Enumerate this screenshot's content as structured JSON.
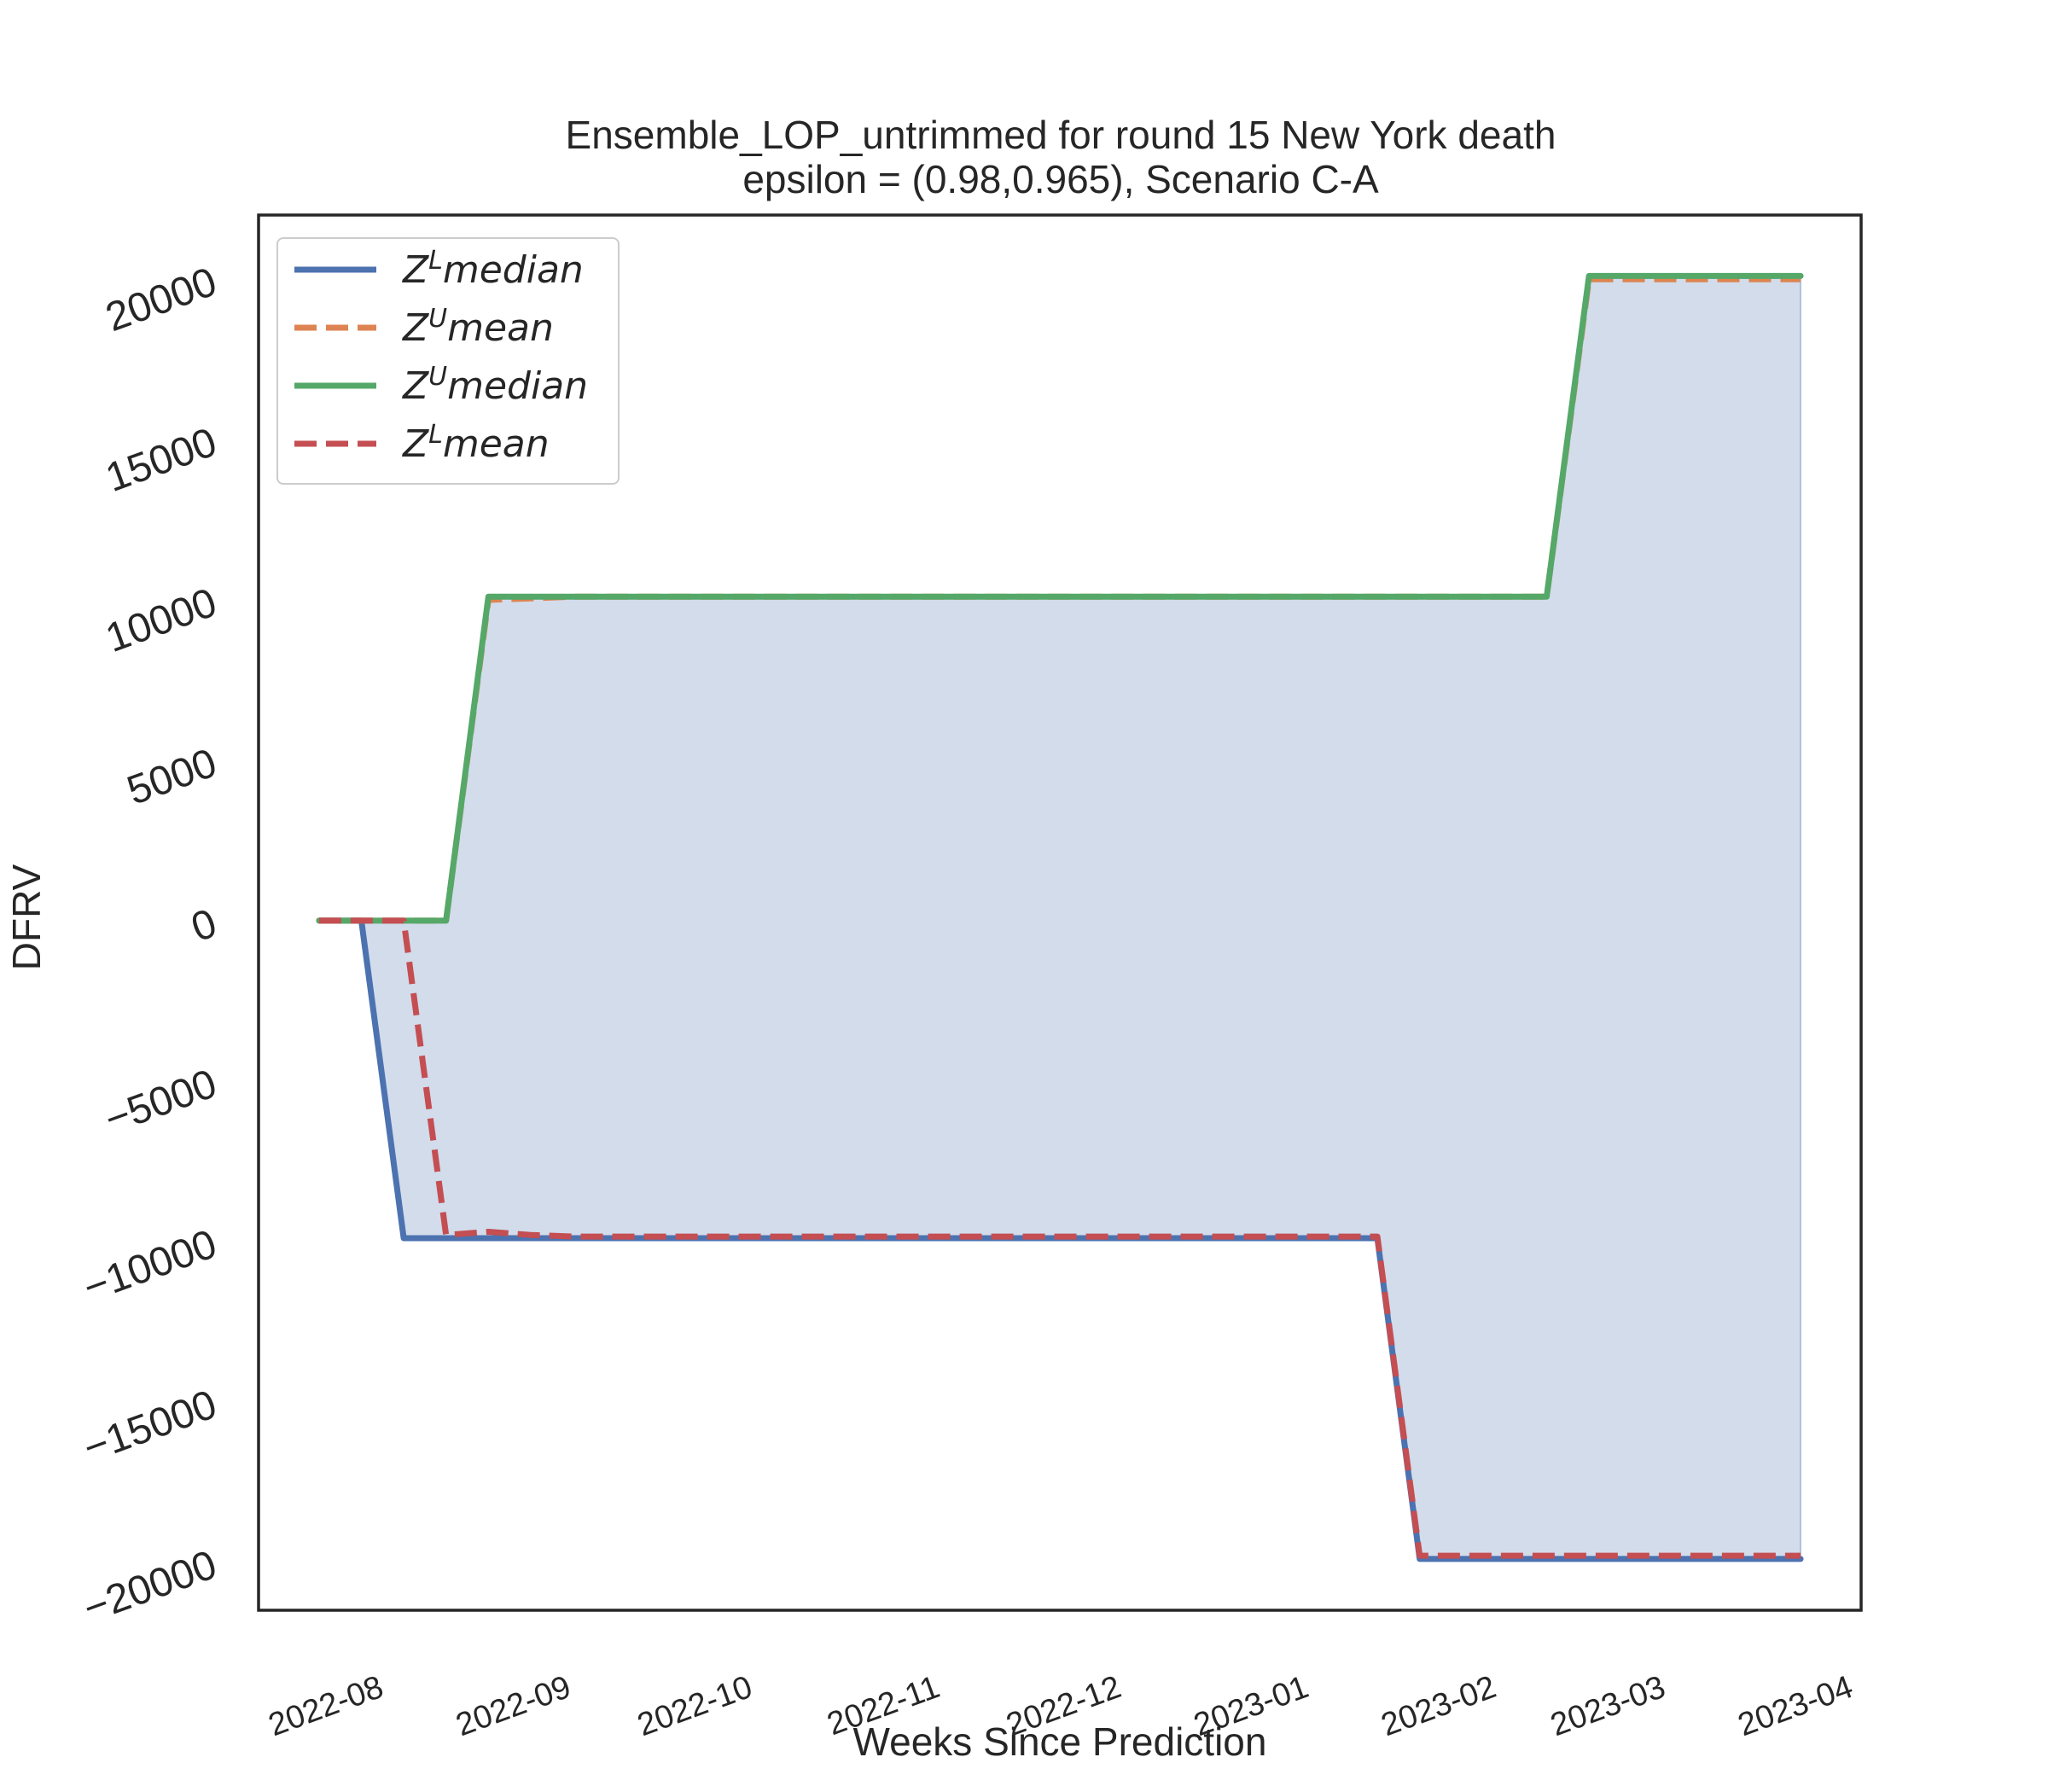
{
  "chart_data": {
    "type": "line",
    "title": "Ensemble_LOP_untrimmed for round 15 New York  death",
    "subtitle": "epsilon = (0.98,0.965), Scenario C-A",
    "xlabel": "Weeks Since Prediction",
    "ylabel": "DFRV",
    "xlim": [
      "2022-07-13",
      "2023-04-04"
    ],
    "ylim": [
      -21500,
      22000
    ],
    "x_ticks": [
      "2022-08",
      "2022-09",
      "2022-10",
      "2022-11",
      "2022-12",
      "2023-01",
      "2023-02",
      "2023-03",
      "2023-04"
    ],
    "y_ticks": [
      20000,
      15000,
      10000,
      5000,
      0,
      -5000,
      -10000,
      -15000,
      -20000
    ],
    "y_tick_labels": [
      "20000",
      "15000",
      "10000",
      "5000",
      "0",
      "−10000",
      "−15000",
      "−20000"
    ],
    "y_tick_labels_full": [
      "20000",
      "15000",
      "10000",
      "5000",
      "0",
      "−5000",
      "−10000",
      "−15000",
      "−20000"
    ],
    "grid": false,
    "legend_position": "top-left",
    "x": [
      "2022-07-23",
      "2022-07-30",
      "2022-08-06",
      "2022-08-13",
      "2022-08-20",
      "2022-08-27",
      "2022-09-03",
      "2022-09-10",
      "2022-09-17",
      "2022-09-24",
      "2022-10-01",
      "2022-10-08",
      "2022-10-15",
      "2022-10-22",
      "2022-10-29",
      "2022-11-05",
      "2022-11-12",
      "2022-11-19",
      "2022-11-26",
      "2022-12-03",
      "2022-12-10",
      "2022-12-17",
      "2022-12-24",
      "2022-12-31",
      "2023-01-07",
      "2023-01-14",
      "2023-01-21",
      "2023-01-28",
      "2023-02-04",
      "2023-02-11",
      "2023-02-18",
      "2023-02-25",
      "2023-03-04",
      "2023-03-11",
      "2023-03-18",
      "2023-03-25"
    ],
    "series": [
      {
        "name": "Z^L median",
        "legend_base": "Z",
        "legend_sup": "L",
        "legend_word": "median",
        "color": "#4c72b0",
        "dash": "solid",
        "values": [
          0,
          0,
          -9900,
          -9900,
          -9900,
          -9900,
          -9900,
          -9900,
          -9900,
          -9900,
          -9900,
          -9900,
          -9900,
          -9900,
          -9900,
          -9900,
          -9900,
          -9900,
          -9900,
          -9900,
          -9900,
          -9900,
          -9900,
          -9900,
          -9900,
          -9900,
          -19900,
          -19900,
          -19900,
          -19900,
          -19900,
          -19900,
          -19900,
          -19900,
          -19900,
          -19900
        ]
      },
      {
        "name": "Z^U mean",
        "legend_base": "Z",
        "legend_sup": "U",
        "legend_word": "mean",
        "color": "#dd8452",
        "dash": "dashed",
        "values": [
          0,
          0,
          0,
          0,
          10000,
          10050,
          10100,
          10100,
          10100,
          10100,
          10100,
          10100,
          10100,
          10100,
          10100,
          10100,
          10100,
          10100,
          10100,
          10100,
          10100,
          10100,
          10100,
          10100,
          10100,
          10100,
          10100,
          10100,
          10100,
          10100,
          20000,
          20000,
          20000,
          20000,
          20000,
          20000
        ]
      },
      {
        "name": "Z^U median",
        "legend_base": "Z",
        "legend_sup": "U",
        "legend_word": "median",
        "color": "#55a868",
        "dash": "solid",
        "values": [
          0,
          0,
          0,
          0,
          10100,
          10100,
          10100,
          10100,
          10100,
          10100,
          10100,
          10100,
          10100,
          10100,
          10100,
          10100,
          10100,
          10100,
          10100,
          10100,
          10100,
          10100,
          10100,
          10100,
          10100,
          10100,
          10100,
          10100,
          10100,
          10100,
          20100,
          20100,
          20100,
          20100,
          20100,
          20100
        ]
      },
      {
        "name": "Z^L mean",
        "legend_base": "Z",
        "legend_sup": "L",
        "legend_word": "mean",
        "color": "#c44e52",
        "dash": "dashed",
        "values": [
          0,
          0,
          0,
          -9800,
          -9700,
          -9800,
          -9850,
          -9850,
          -9850,
          -9850,
          -9850,
          -9850,
          -9850,
          -9850,
          -9850,
          -9850,
          -9850,
          -9850,
          -9850,
          -9850,
          -9850,
          -9850,
          -9850,
          -9850,
          -9850,
          -9850,
          -19800,
          -19800,
          -19800,
          -19800,
          -19800,
          -19800,
          -19800,
          -19800,
          -19800,
          -19800
        ]
      }
    ],
    "fill": {
      "between": [
        "Z^L median",
        "Z^U median"
      ],
      "color": "#4c72b0",
      "opacity": 0.25
    }
  }
}
